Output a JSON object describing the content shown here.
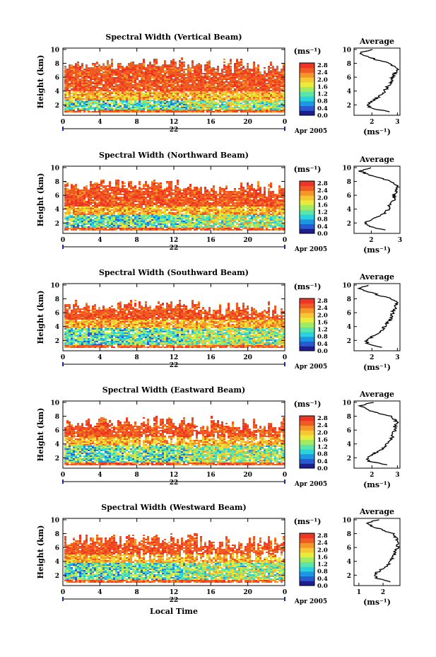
{
  "colorbar": {
    "unit": "(ms⁻¹)",
    "ticks": [
      "0.0",
      "0.4",
      "0.8",
      "1.2",
      "1.6",
      "2.0",
      "2.4",
      "2.8"
    ],
    "colors": [
      "#1e1e8c",
      "#2a5ad2",
      "#1e96e6",
      "#2ad2dc",
      "#5ae6aa",
      "#a0eb64",
      "#e6eb3c",
      "#f5c832",
      "#f59628",
      "#f05a23",
      "#ee3524"
    ]
  },
  "date_label": "Apr 2005",
  "day_label": "22",
  "xlabel_bottom": "Local Time",
  "panels": [
    {
      "title": "Spectral Width (Vertical Beam)",
      "avg_title": "Average",
      "avg_unit": "(ms⁻¹)"
    },
    {
      "title": "Spectral Width (Northward Beam)",
      "avg_title": "Average",
      "avg_unit": "(ms⁻¹)"
    },
    {
      "title": "Spectral Width (Southward Beam)",
      "avg_title": "Average",
      "avg_unit": "(ms⁻¹)"
    },
    {
      "title": "Spectral Width (Eastward Beam)",
      "avg_title": "Average",
      "avg_unit": "(ms⁻¹)"
    },
    {
      "title": "Spectral Width (Westward Beam)",
      "avg_title": "Average",
      "avg_unit": "(ms⁻¹)"
    }
  ],
  "chart_data": [
    {
      "type": "heatmap",
      "title": "Spectral Width (Vertical Beam)",
      "xlabel": "",
      "ylabel": "Height (km)",
      "x_ticks": [
        "0",
        "4",
        "8",
        "12",
        "16",
        "20",
        "0"
      ],
      "y_ticks": [
        "2",
        "4",
        "6",
        "8",
        "10"
      ],
      "xlim": [
        0,
        24
      ],
      "ylim": [
        0.5,
        10.2
      ],
      "color_scale": {
        "min": 0.0,
        "max": 2.8,
        "unit": "(ms⁻¹)"
      },
      "profile": {
        "title": "Average",
        "xlabel": "(ms⁻¹)",
        "x_ticks": [
          "2",
          "3"
        ],
        "xlim": [
          1.3,
          3.1
        ],
        "heights": [
          1.0,
          1.5,
          2.0,
          2.5,
          3.0,
          3.5,
          4.0,
          4.5,
          5.0,
          5.5,
          6.0,
          6.5,
          7.0,
          7.5,
          8.0,
          8.5,
          9.0,
          9.5,
          10.0
        ],
        "values": [
          2.7,
          2.0,
          1.8,
          2.0,
          2.2,
          2.4,
          2.5,
          2.6,
          2.7,
          2.8,
          2.8,
          2.9,
          3.0,
          2.9,
          2.7,
          2.2,
          1.8,
          1.5,
          2.0
        ]
      }
    },
    {
      "type": "heatmap",
      "title": "Spectral Width (Northward Beam)",
      "xlabel": "",
      "ylabel": "Height (km)",
      "x_ticks": [
        "0",
        "4",
        "8",
        "12",
        "16",
        "20",
        "0"
      ],
      "y_ticks": [
        "2",
        "4",
        "6",
        "8",
        "10"
      ],
      "xlim": [
        0,
        24
      ],
      "ylim": [
        0.5,
        10.2
      ],
      "color_scale": {
        "min": 0.0,
        "max": 2.8,
        "unit": "(ms⁻¹)"
      },
      "profile": {
        "title": "Average",
        "xlabel": "(ms⁻¹)",
        "x_ticks": [
          "2",
          "3"
        ],
        "xlim": [
          1.4,
          3.0
        ],
        "heights": [
          1.0,
          1.5,
          2.0,
          2.5,
          3.0,
          3.5,
          4.0,
          4.5,
          5.0,
          5.5,
          6.0,
          6.5,
          7.0,
          7.5,
          8.0,
          8.5,
          9.0,
          9.5,
          10.0
        ],
        "values": [
          2.5,
          1.9,
          1.8,
          2.0,
          2.3,
          2.5,
          2.6,
          2.6,
          2.7,
          2.8,
          2.8,
          2.9,
          2.9,
          2.9,
          2.7,
          2.3,
          1.9,
          1.6,
          2.0
        ]
      }
    },
    {
      "type": "heatmap",
      "title": "Spectral Width (Southward Beam)",
      "xlabel": "",
      "ylabel": "Height (km)",
      "x_ticks": [
        "0",
        "4",
        "8",
        "12",
        "16",
        "20",
        "0"
      ],
      "y_ticks": [
        "2",
        "4",
        "6",
        "8",
        "10"
      ],
      "xlim": [
        0,
        24
      ],
      "ylim": [
        0.5,
        10.2
      ],
      "color_scale": {
        "min": 0.0,
        "max": 2.8,
        "unit": "(ms⁻¹)"
      },
      "profile": {
        "title": "Average",
        "xlabel": "(ms⁻¹)",
        "x_ticks": [
          "2",
          "3"
        ],
        "xlim": [
          1.3,
          3.1
        ],
        "heights": [
          1.0,
          1.5,
          2.0,
          2.5,
          3.0,
          3.5,
          4.0,
          4.5,
          5.0,
          5.5,
          6.0,
          6.5,
          7.0,
          7.5,
          8.0,
          8.5,
          9.0,
          9.5,
          10.0
        ],
        "values": [
          2.4,
          1.8,
          1.8,
          2.0,
          2.2,
          2.4,
          2.5,
          2.6,
          2.7,
          2.8,
          2.8,
          2.9,
          2.9,
          3.0,
          2.8,
          2.3,
          1.9,
          1.5,
          1.9
        ]
      }
    },
    {
      "type": "heatmap",
      "title": "Spectral Width (Eastward Beam)",
      "xlabel": "",
      "ylabel": "Height (km)",
      "x_ticks": [
        "0",
        "4",
        "8",
        "12",
        "16",
        "20",
        "0"
      ],
      "y_ticks": [
        "2",
        "4",
        "6",
        "8",
        "10"
      ],
      "xlim": [
        0,
        24
      ],
      "ylim": [
        0.5,
        10.2
      ],
      "color_scale": {
        "min": 0.0,
        "max": 2.8,
        "unit": "(ms⁻¹)"
      },
      "profile": {
        "title": "Average",
        "xlabel": "(ms⁻¹)",
        "x_ticks": [
          "2",
          "3"
        ],
        "xlim": [
          1.3,
          3.1
        ],
        "heights": [
          1.0,
          1.5,
          2.0,
          2.5,
          3.0,
          3.5,
          4.0,
          4.5,
          5.0,
          5.5,
          6.0,
          6.5,
          7.0,
          7.5,
          8.0,
          8.5,
          9.0,
          9.5,
          10.0
        ],
        "values": [
          2.6,
          1.9,
          1.8,
          2.0,
          2.3,
          2.5,
          2.6,
          2.7,
          2.8,
          2.8,
          2.9,
          2.9,
          3.0,
          2.9,
          2.7,
          2.2,
          1.8,
          1.5,
          2.0
        ]
      }
    },
    {
      "type": "heatmap",
      "title": "Spectral Width (Westward Beam)",
      "xlabel": "Local Time",
      "ylabel": "Height (km)",
      "x_ticks": [
        "0",
        "4",
        "8",
        "12",
        "16",
        "20",
        "0"
      ],
      "y_ticks": [
        "2",
        "4",
        "6",
        "8",
        "10"
      ],
      "xlim": [
        0,
        24
      ],
      "ylim": [
        0.5,
        10.2
      ],
      "color_scale": {
        "min": 0.0,
        "max": 2.8,
        "unit": "(ms⁻¹)"
      },
      "profile": {
        "title": "Average",
        "xlabel": "(ms⁻¹)",
        "x_ticks": [
          "1",
          "2"
        ],
        "xlim": [
          0.8,
          2.7
        ],
        "heights": [
          1.0,
          1.5,
          2.0,
          2.5,
          3.0,
          3.5,
          4.0,
          4.5,
          5.0,
          5.5,
          6.0,
          6.5,
          7.0,
          7.5,
          8.0,
          8.5,
          9.0,
          9.5,
          10.0
        ],
        "values": [
          2.3,
          1.8,
          1.6,
          1.8,
          2.0,
          2.2,
          2.3,
          2.4,
          2.5,
          2.5,
          2.6,
          2.6,
          2.6,
          2.5,
          2.4,
          2.0,
          1.6,
          1.3,
          1.8
        ]
      }
    }
  ]
}
